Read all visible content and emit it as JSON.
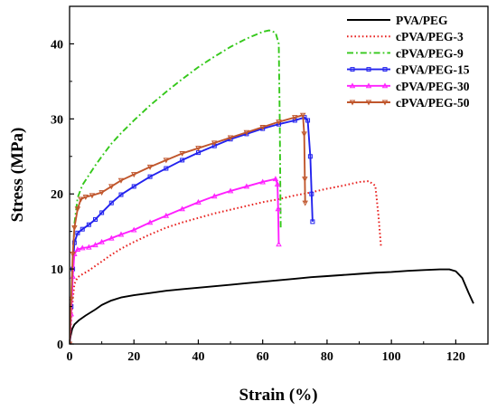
{
  "chart_data": {
    "type": "line",
    "title": "",
    "xlabel": "Strain (%)",
    "ylabel": "Stress (MPa)",
    "xlim": [
      0,
      130
    ],
    "ylim": [
      0,
      45
    ],
    "xticks": [
      0,
      20,
      40,
      60,
      80,
      100,
      120
    ],
    "yticks": [
      0,
      10,
      20,
      30,
      40
    ],
    "grid": false,
    "legend_position": "top-right",
    "series": [
      {
        "name": "PVA/PEG",
        "color": "#000000",
        "style": "solid",
        "marker": "none",
        "points": [
          [
            0,
            0
          ],
          [
            0.3,
            1
          ],
          [
            0.8,
            2
          ],
          [
            1.5,
            2.6
          ],
          [
            3,
            3.2
          ],
          [
            5,
            3.8
          ],
          [
            8,
            4.6
          ],
          [
            10,
            5.2
          ],
          [
            13,
            5.8
          ],
          [
            16,
            6.2
          ],
          [
            20,
            6.5
          ],
          [
            25,
            6.8
          ],
          [
            30,
            7.1
          ],
          [
            35,
            7.3
          ],
          [
            40,
            7.5
          ],
          [
            45,
            7.7
          ],
          [
            50,
            7.9
          ],
          [
            55,
            8.1
          ],
          [
            60,
            8.3
          ],
          [
            65,
            8.5
          ],
          [
            70,
            8.7
          ],
          [
            75,
            8.9
          ],
          [
            80,
            9.05
          ],
          [
            85,
            9.2
          ],
          [
            90,
            9.35
          ],
          [
            95,
            9.5
          ],
          [
            100,
            9.6
          ],
          [
            105,
            9.75
          ],
          [
            110,
            9.85
          ],
          [
            115,
            9.95
          ],
          [
            118,
            9.95
          ],
          [
            120,
            9.7
          ],
          [
            122,
            8.8
          ],
          [
            124,
            6.8
          ],
          [
            125.5,
            5.4
          ]
        ]
      },
      {
        "name": "cPVA/PEG-3",
        "color": "#e8211f",
        "style": "dotted",
        "marker": "none",
        "points": [
          [
            0,
            0
          ],
          [
            0.5,
            3
          ],
          [
            1,
            6
          ],
          [
            1.5,
            8
          ],
          [
            2.5,
            8.9
          ],
          [
            4,
            9.3
          ],
          [
            6,
            9.8
          ],
          [
            8,
            10.4
          ],
          [
            10,
            11
          ],
          [
            13,
            11.9
          ],
          [
            16,
            12.7
          ],
          [
            20,
            13.6
          ],
          [
            25,
            14.6
          ],
          [
            30,
            15.5
          ],
          [
            35,
            16.2
          ],
          [
            40,
            16.8
          ],
          [
            45,
            17.4
          ],
          [
            50,
            17.9
          ],
          [
            55,
            18.4
          ],
          [
            60,
            18.9
          ],
          [
            65,
            19.3
          ],
          [
            70,
            19.8
          ],
          [
            75,
            20.2
          ],
          [
            80,
            20.7
          ],
          [
            85,
            21.1
          ],
          [
            90,
            21.6
          ],
          [
            93,
            21.7
          ],
          [
            95,
            21.1
          ],
          [
            96,
            17
          ],
          [
            96.8,
            12.8
          ]
        ]
      },
      {
        "name": "cPVA/PEG-9",
        "color": "#35c81b",
        "style": "dashdot",
        "marker": "none",
        "points": [
          [
            0,
            0
          ],
          [
            0.5,
            5
          ],
          [
            1,
            11
          ],
          [
            1.5,
            16
          ],
          [
            2.5,
            19.5
          ],
          [
            4,
            21.2
          ],
          [
            6,
            22.5
          ],
          [
            8,
            23.8
          ],
          [
            10,
            25
          ],
          [
            13,
            26.7
          ],
          [
            16,
            28.1
          ],
          [
            20,
            29.8
          ],
          [
            25,
            31.8
          ],
          [
            30,
            33.6
          ],
          [
            35,
            35.3
          ],
          [
            40,
            36.9
          ],
          [
            45,
            38.3
          ],
          [
            50,
            39.6
          ],
          [
            55,
            40.7
          ],
          [
            60,
            41.6
          ],
          [
            62,
            41.8
          ],
          [
            64,
            41.5
          ],
          [
            65,
            40
          ],
          [
            65.3,
            30
          ],
          [
            65.5,
            20
          ],
          [
            65.6,
            15.5
          ]
        ]
      },
      {
        "name": "cPVA/PEG-15",
        "color": "#2222ee",
        "style": "solid",
        "marker": "square",
        "points": [
          [
            0,
            0
          ],
          [
            0.5,
            5
          ],
          [
            1,
            10
          ],
          [
            1.5,
            13.5
          ],
          [
            2.5,
            14.8
          ],
          [
            4,
            15.3
          ],
          [
            6,
            15.9
          ],
          [
            8,
            16.6
          ],
          [
            10,
            17.5
          ],
          [
            13,
            18.8
          ],
          [
            16,
            19.9
          ],
          [
            20,
            21
          ],
          [
            25,
            22.3
          ],
          [
            30,
            23.4
          ],
          [
            35,
            24.5
          ],
          [
            40,
            25.5
          ],
          [
            45,
            26.4
          ],
          [
            50,
            27.3
          ],
          [
            55,
            28
          ],
          [
            60,
            28.7
          ],
          [
            65,
            29.3
          ],
          [
            70,
            29.8
          ],
          [
            73,
            30.2
          ],
          [
            74,
            29.8
          ],
          [
            74.8,
            25
          ],
          [
            75.2,
            20
          ],
          [
            75.5,
            16.3
          ]
        ]
      },
      {
        "name": "cPVA/PEG-30",
        "color": "#ff1fff",
        "style": "solid",
        "marker": "triangle",
        "points": [
          [
            0,
            0
          ],
          [
            0.5,
            4
          ],
          [
            1,
            9
          ],
          [
            1.5,
            12
          ],
          [
            2.5,
            12.6
          ],
          [
            4,
            12.8
          ],
          [
            6,
            12.9
          ],
          [
            8,
            13.2
          ],
          [
            10,
            13.6
          ],
          [
            13,
            14.1
          ],
          [
            16,
            14.6
          ],
          [
            20,
            15.2
          ],
          [
            25,
            16.2
          ],
          [
            30,
            17.1
          ],
          [
            35,
            18
          ],
          [
            40,
            18.9
          ],
          [
            45,
            19.7
          ],
          [
            50,
            20.4
          ],
          [
            55,
            21
          ],
          [
            60,
            21.6
          ],
          [
            64,
            22
          ],
          [
            64.6,
            21.3
          ],
          [
            64.8,
            18
          ],
          [
            65,
            13.3
          ]
        ]
      },
      {
        "name": "cPVA/PEG-50",
        "color": "#c0562c",
        "style": "solid",
        "marker": "triangle-down",
        "points": [
          [
            0,
            0
          ],
          [
            0.5,
            6
          ],
          [
            1,
            12
          ],
          [
            1.5,
            15.5
          ],
          [
            2.5,
            18
          ],
          [
            3.5,
            19.3
          ],
          [
            5,
            19.6
          ],
          [
            7,
            19.8
          ],
          [
            10,
            20.2
          ],
          [
            13,
            21
          ],
          [
            16,
            21.8
          ],
          [
            20,
            22.6
          ],
          [
            25,
            23.6
          ],
          [
            30,
            24.5
          ],
          [
            35,
            25.4
          ],
          [
            40,
            26.1
          ],
          [
            45,
            26.8
          ],
          [
            50,
            27.5
          ],
          [
            55,
            28.2
          ],
          [
            60,
            28.9
          ],
          [
            65,
            29.6
          ],
          [
            70,
            30.2
          ],
          [
            72.5,
            30.5
          ],
          [
            72.9,
            28
          ],
          [
            73.1,
            22
          ],
          [
            73.2,
            18.8
          ]
        ]
      }
    ]
  }
}
